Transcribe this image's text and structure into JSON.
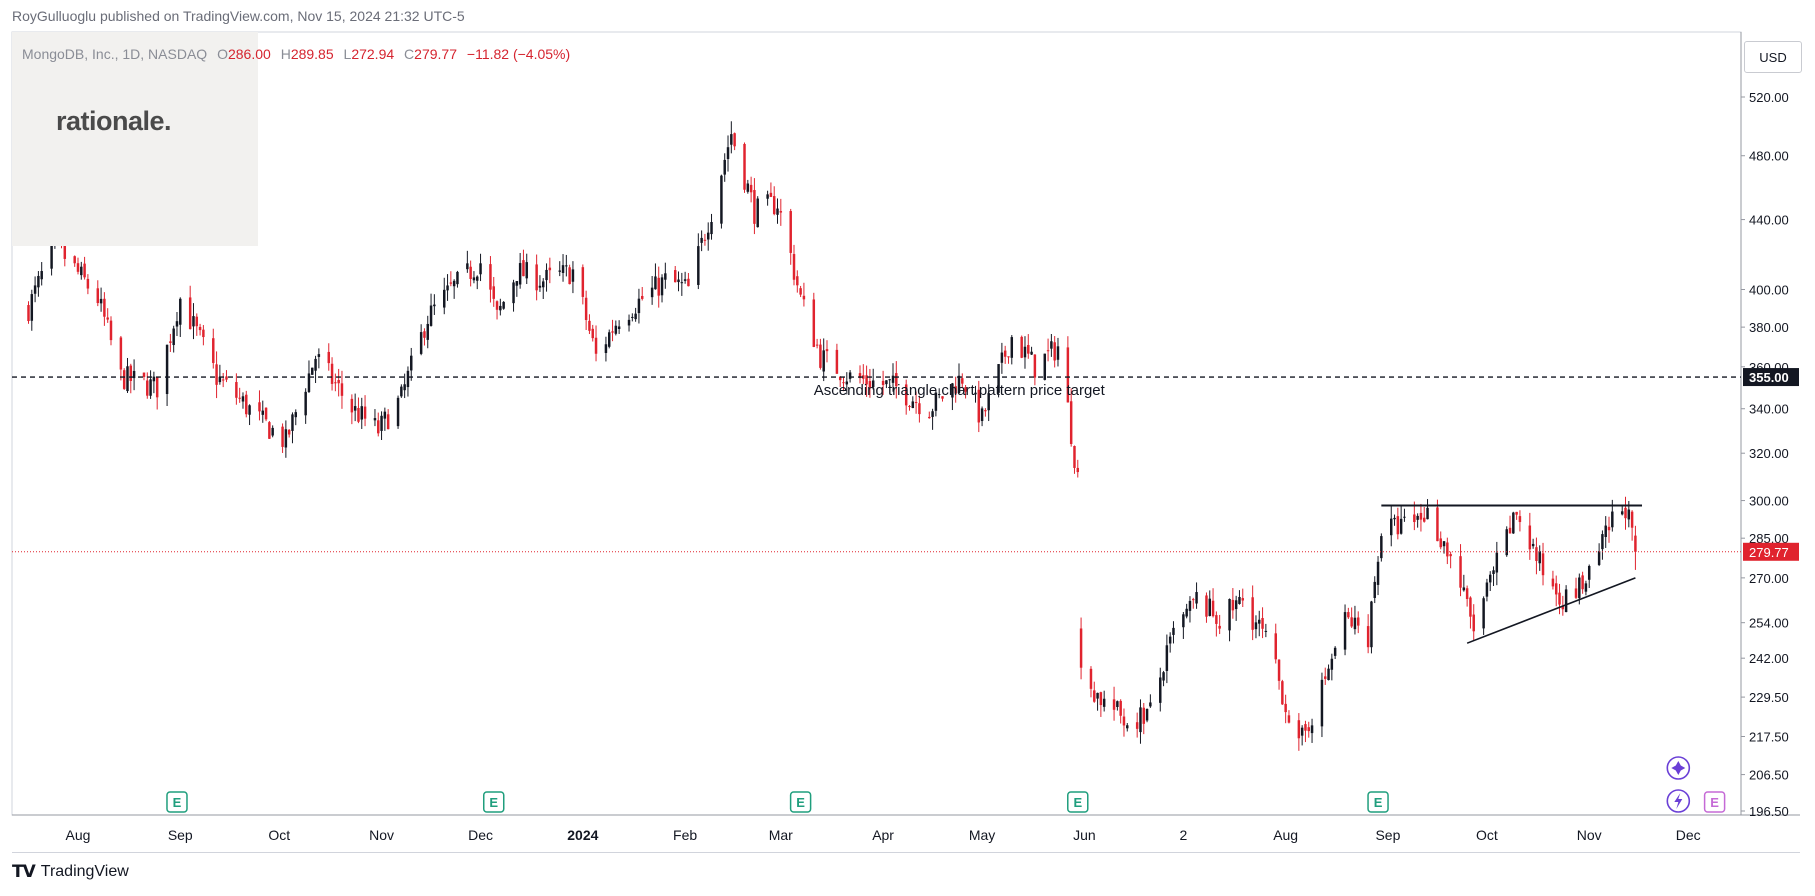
{
  "publish_line": "RoyGulluoglu published on TradingView.com, Nov 15, 2024 21:32 UTC-5",
  "symbol": {
    "name": "MongoDB, Inc., 1D, NASDAQ",
    "o_label": "O",
    "o": "286.00",
    "h_label": "H",
    "h": "289.85",
    "l_label": "L",
    "l": "272.94",
    "c_label": "C",
    "c": "279.77",
    "change": "−11.82 (−4.05%)"
  },
  "logo_text": "rationale.",
  "currency": "USD",
  "footer_brand": "TradingView",
  "colors": {
    "up": "#131722",
    "down": "#e0232e",
    "price_line": "#e0232e",
    "target_line": "#131722"
  },
  "chart_data": {
    "type": "candlestick",
    "y_ticks": [
      "520.00",
      "480.00",
      "440.00",
      "400.00",
      "380.00",
      "360.00",
      "340.00",
      "320.00",
      "300.00",
      "285.00",
      "270.00",
      "254.00",
      "242.00",
      "229.50",
      "217.50",
      "206.50",
      "196.50"
    ],
    "y_scale": "log",
    "x_ticks": [
      "Aug",
      "Sep",
      "Oct",
      "Nov",
      "Dec",
      "2024",
      "Feb",
      "Mar",
      "Apr",
      "May",
      "Jun",
      "2",
      "Aug",
      "Sep",
      "Oct",
      "Nov",
      "Dec"
    ],
    "target_price": "355.00",
    "last_price": "279.77",
    "annotation": "Ascending triangle chart pattern price target",
    "resistance_level": 298,
    "support_line": {
      "from": [
        "Sep 25 2024",
        247
      ],
      "to": [
        "Nov 15 2024",
        270
      ]
    },
    "earnings_markers": [
      "Aug 31 2023",
      "Dec 5 2023",
      "Mar 7 2024",
      "May 30 2024",
      "Aug 29 2024",
      "Dec 9 2024"
    ],
    "earnings_label": "E",
    "path_description": "Daily OHLC from Jul 2023 to Nov 15 2024; drawn by script from anchor closes",
    "anchors": [
      [
        "Jul 17 2023",
        390
      ],
      [
        "Jul 25 2023",
        425
      ],
      [
        "Aug 7 2023",
        395
      ],
      [
        "Aug 14 2023",
        355
      ],
      [
        "Aug 25 2023",
        350
      ],
      [
        "Sep 1 2023",
        395
      ],
      [
        "Sep 12 2023",
        355
      ],
      [
        "Sep 25 2023",
        335
      ],
      [
        "Oct 3 2023",
        325
      ],
      [
        "Oct 12 2023",
        365
      ],
      [
        "Oct 23 2023",
        340
      ],
      [
        "Oct 31 2023",
        330
      ],
      [
        "Nov 7 2023",
        345
      ],
      [
        "Nov 15 2023",
        385
      ],
      [
        "Nov 22 2023",
        400
      ],
      [
        "Dec 1 2023",
        415
      ],
      [
        "Dec 6 2023",
        385
      ],
      [
        "Dec 12 2023",
        410
      ],
      [
        "Dec 20 2023",
        405
      ],
      [
        "Dec 29 2023",
        410
      ],
      [
        "Jan 5 2024",
        365
      ],
      [
        "Jan 12 2024",
        385
      ],
      [
        "Jan 19 2024",
        395
      ],
      [
        "Jan 26 2024",
        405
      ],
      [
        "Feb 2 2024",
        400
      ],
      [
        "Feb 9 2024",
        445
      ],
      [
        "Feb 15 2024",
        495
      ],
      [
        "Feb 22 2024",
        445
      ],
      [
        "Feb 29 2024",
        450
      ],
      [
        "Mar 7 2024",
        395
      ],
      [
        "Mar 13 2024",
        365
      ],
      [
        "Mar 22 2024",
        355
      ],
      [
        "Apr 5 2024",
        350
      ],
      [
        "Apr 15 2024",
        340
      ],
      [
        "Apr 25 2024",
        355
      ],
      [
        "May 1 2024",
        335
      ],
      [
        "May 10 2024",
        375
      ],
      [
        "May 17 2024",
        360
      ],
      [
        "May 24 2024",
        370
      ],
      [
        "May 30 2024",
        310
      ],
      [
        "May 31 2024",
        236
      ],
      [
        "Jun 7 2024",
        228
      ],
      [
        "Jun 14 2024",
        222
      ],
      [
        "Jun 21 2024",
        225
      ],
      [
        "Jun 28 2024",
        250
      ],
      [
        "Jul 5 2024",
        262
      ],
      [
        "Jul 12 2024",
        255
      ],
      [
        "Jul 19 2024",
        262
      ],
      [
        "Jul 26 2024",
        248
      ],
      [
        "Aug 5 2024",
        214
      ],
      [
        "Aug 12 2024",
        232
      ],
      [
        "Aug 19 2024",
        255
      ],
      [
        "Aug 26 2024",
        250
      ],
      [
        "Aug 30 2024",
        288
      ],
      [
        "Sep 6 2024",
        290
      ],
      [
        "Sep 13 2024",
        295
      ],
      [
        "Sep 20 2024",
        278
      ],
      [
        "Sep 27 2024",
        252
      ],
      [
        "Oct 4 2024",
        275
      ],
      [
        "Oct 10 2024",
        295
      ],
      [
        "Oct 18 2024",
        272
      ],
      [
        "Oct 25 2024",
        262
      ],
      [
        "Nov 1 2024",
        270
      ],
      [
        "Nov 8 2024",
        292
      ],
      [
        "Nov 12 2024",
        298
      ],
      [
        "Nov 15 2024",
        279.77
      ]
    ]
  }
}
